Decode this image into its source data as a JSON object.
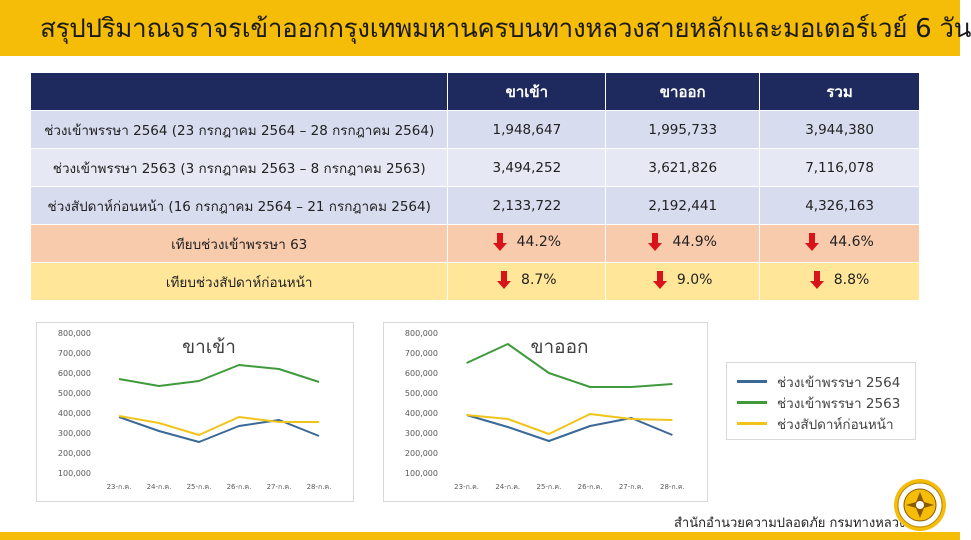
{
  "title": "สรุปปริมาณจราจรเข้าออกกรุงเทพมหานครบนทางหลวงสายหลักและมอเตอร์เวย์ 6 วัน",
  "table": {
    "headers": [
      "",
      "ขาเข้า",
      "ขาออก",
      "รวม"
    ],
    "rows": [
      {
        "label": "ช่วงเข้าพรรษา 2564 (23 กรกฎาคม 2564 – 28 กรกฎาคม 2564)",
        "in": "1,948,647",
        "out": "1,995,733",
        "total": "3,944,380"
      },
      {
        "label": "ช่วงเข้าพรรษา 2563 (3 กรกฎาคม 2563 – 8 กรกฎาคม 2563)",
        "in": "3,494,252",
        "out": "3,621,826",
        "total": "7,116,078"
      },
      {
        "label": "ช่วงสัปดาห์ก่อนหน้า (16 กรกฎาคม 2564 – 21 กรกฎาคม 2564)",
        "in": "2,133,722",
        "out": "2,192,441",
        "total": "4,326,163"
      }
    ],
    "compare": [
      {
        "label": "เทียบช่วงเข้าพรรษา 63",
        "in": "44.2%",
        "out": "44.9%",
        "total": "44.6%",
        "direction": "down"
      },
      {
        "label": "เทียบช่วงสัปดาห์ก่อนหน้า",
        "in": "8.7%",
        "out": "9.0%",
        "total": "8.8%",
        "direction": "down"
      }
    ]
  },
  "colors": {
    "accent": "#f5bd07",
    "header": "#1e2a5e",
    "series_2564": "#3a6897",
    "series_2563": "#3f9a3c",
    "series_prev": "#f0c419",
    "arrow": "#d9131a"
  },
  "chart_data": [
    {
      "type": "line",
      "title": "ขาเข้า",
      "categories": [
        "23-ก.ค.",
        "24-ก.ค.",
        "25-ก.ค.",
        "26-ก.ค.",
        "27-ก.ค.",
        "28-ก.ค."
      ],
      "ylim": [
        100000,
        800000
      ],
      "yticks": [
        "800,000",
        "700,000",
        "600,000",
        "500,000",
        "400,000",
        "300,000",
        "200,000",
        "100,000"
      ],
      "series": [
        {
          "name": "ช่วงเข้าพรรษา 2564",
          "values": [
            380000,
            310000,
            255000,
            335000,
            365000,
            285000
          ]
        },
        {
          "name": "ช่วงเข้าพรรษา 2563",
          "values": [
            570000,
            535000,
            560000,
            640000,
            620000,
            555000
          ]
        },
        {
          "name": "ช่วงสัปดาห์ก่อนหน้า",
          "values": [
            385000,
            350000,
            290000,
            380000,
            355000,
            355000
          ]
        }
      ]
    },
    {
      "type": "line",
      "title": "ขาออก",
      "categories": [
        "23-ก.ค.",
        "24-ก.ค.",
        "25-ก.ค.",
        "26-ก.ค.",
        "27-ก.ค.",
        "28-ก.ค."
      ],
      "ylim": [
        100000,
        800000
      ],
      "yticks": [
        "800,000",
        "700,000",
        "600,000",
        "500,000",
        "400,000",
        "300,000",
        "200,000",
        "100,000"
      ],
      "series": [
        {
          "name": "ช่วงเข้าพรรษา 2564",
          "values": [
            390000,
            330000,
            260000,
            335000,
            375000,
            290000
          ]
        },
        {
          "name": "ช่วงเข้าพรรษา 2563",
          "values": [
            650000,
            745000,
            600000,
            530000,
            530000,
            545000
          ]
        },
        {
          "name": "ช่วงสัปดาห์ก่อนหน้า",
          "values": [
            390000,
            370000,
            295000,
            395000,
            370000,
            365000
          ]
        }
      ]
    }
  ],
  "legend": [
    "ช่วงเข้าพรรษา 2564",
    "ช่วงเข้าพรรษา 2563",
    "ช่วงสัปดาห์ก่อนหน้า"
  ],
  "footer": "สำนักอำนวยความปลอดภัย กรมทางหลวง"
}
